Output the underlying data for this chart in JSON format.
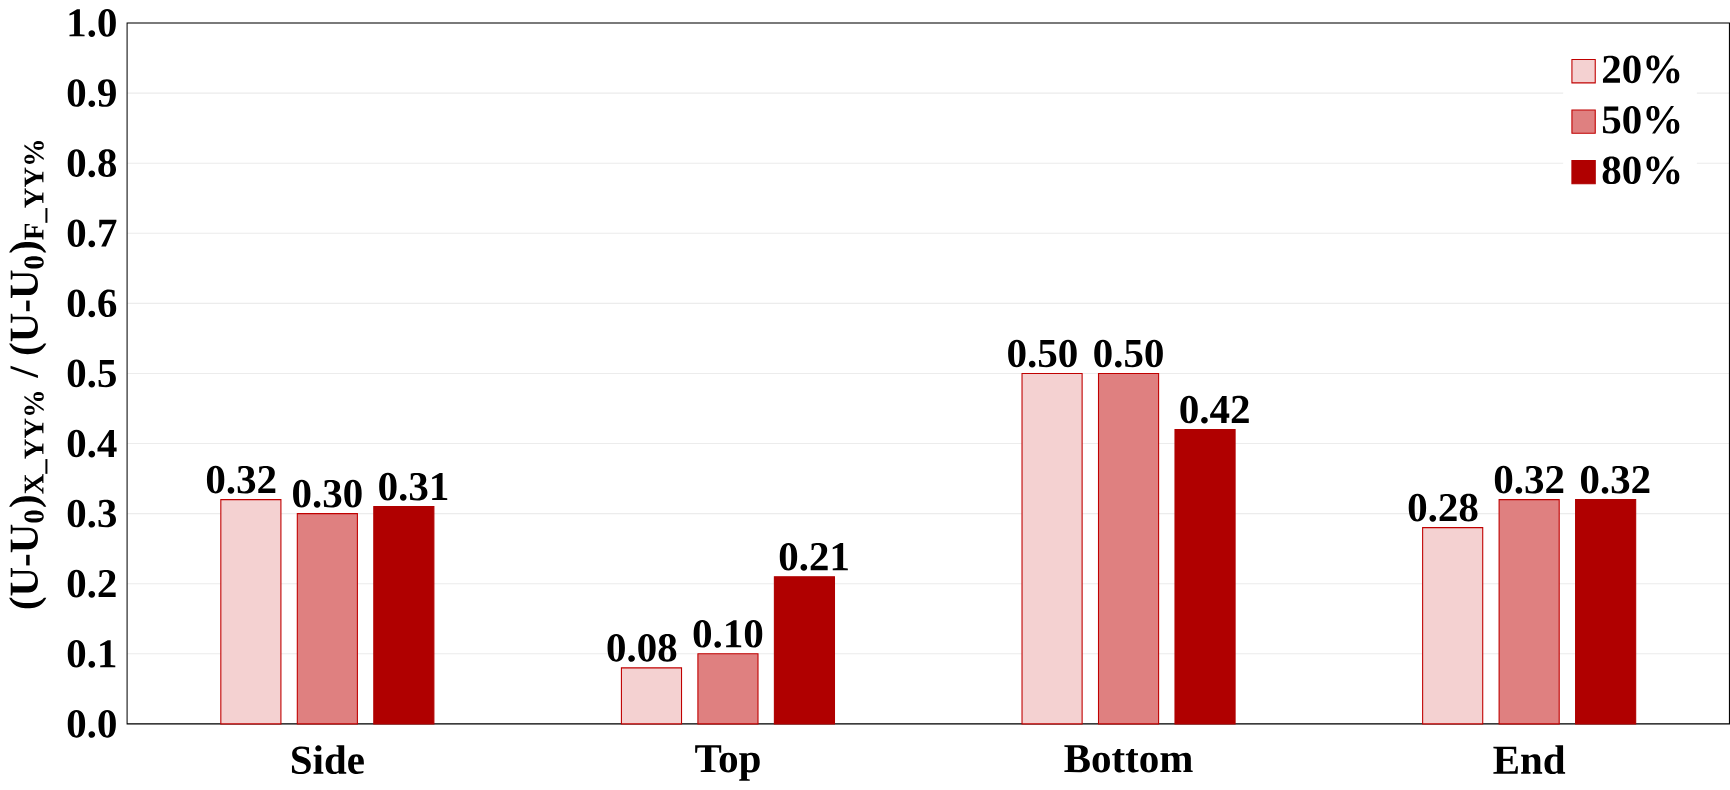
{
  "chart_data": {
    "type": "bar",
    "ylabel": "(U-U$_{0}$)$_{X_YY%}$ / (U-U$_{0}$)$_{F_YY%}$",
    "categories": [
      "Side",
      "Top",
      "Bottom",
      "End"
    ],
    "series": [
      {
        "name": "20%",
        "color": "#c00000",
        "values": [
          0.32,
          0.08,
          0.5,
          0.28
        ],
        "value_labels": [
          "0.32",
          "0.08",
          "0.50",
          "0.28"
        ]
      },
      {
        "name": "50%",
        "color": "#c00000",
        "values": [
          0.3,
          0.1,
          0.5,
          0.32
        ],
        "value_labels": [
          "0.30",
          "0.10",
          "0.50",
          "0.32"
        ]
      },
      {
        "name": "80%",
        "color": "#b00000",
        "values": [
          0.31,
          0.21,
          0.42,
          0.32
        ],
        "value_labels": [
          "0.31",
          "0.21",
          "0.42",
          "0.32"
        ]
      }
    ],
    "ylim": [
      0,
      1
    ],
    "yticks": [
      {
        "value": 0,
        "label": "0.0"
      },
      {
        "value": 0.1,
        "label": "0.1"
      },
      {
        "value": 0.2,
        "label": "0.2"
      },
      {
        "value": 0.3,
        "label": "0.3"
      },
      {
        "value": 0.4,
        "label": "0.4"
      },
      {
        "value": 0.5,
        "label": "0.5"
      },
      {
        "value": 0.6,
        "label": "0.6"
      },
      {
        "value": 0.7,
        "label": "0.7"
      },
      {
        "value": 0.8,
        "label": "0.8"
      },
      {
        "value": 0.9,
        "label": "0.9"
      },
      {
        "value": 1,
        "label": "1.0"
      }
    ],
    "grid": "y",
    "legend": "top right"
  }
}
